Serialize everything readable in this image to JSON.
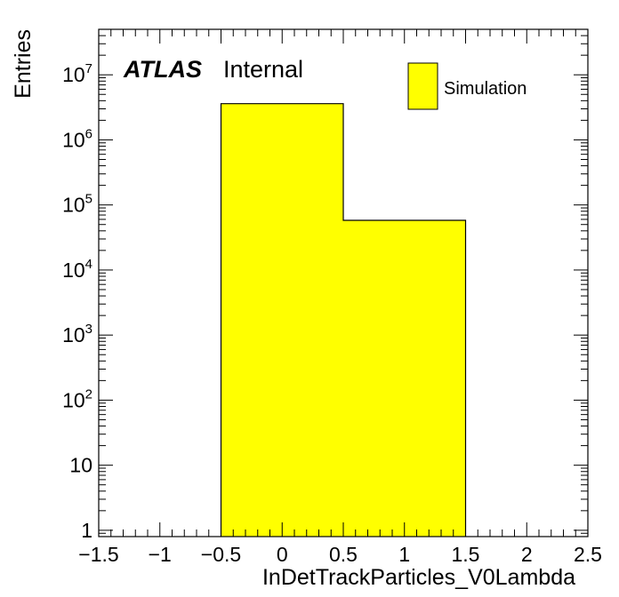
{
  "chart_data": {
    "type": "bar",
    "xlabel": "InDetTrackParticles_V0Lambda",
    "ylabel": "Entries",
    "xlim": [
      -1.5,
      2.5
    ],
    "ylim": [
      0.8,
      50000000
    ],
    "yscale": "log",
    "grid": false,
    "legend_position": "top-right",
    "fill_color": "#ffff00",
    "bins": [
      {
        "low": -0.5,
        "high": 0.5,
        "value": 3600000
      },
      {
        "low": 0.5,
        "high": 1.5,
        "value": 58000
      }
    ],
    "x_tick_labels": [
      {
        "value": -1.5,
        "text": "−1.5"
      },
      {
        "value": -1,
        "text": "−1"
      },
      {
        "value": -0.5,
        "text": "−0.5"
      },
      {
        "value": 0,
        "text": "0"
      },
      {
        "value": 0.5,
        "text": "0.5"
      },
      {
        "value": 1,
        "text": "1"
      },
      {
        "value": 1.5,
        "text": "1.5"
      },
      {
        "value": 2,
        "text": "2"
      },
      {
        "value": 2.5,
        "text": "2.5"
      }
    ],
    "y_tick_labels": [
      {
        "value": 1,
        "base": "1",
        "exp": ""
      },
      {
        "value": 10,
        "base": "10",
        "exp": ""
      },
      {
        "value": 100,
        "base": "10",
        "exp": "2"
      },
      {
        "value": 1000,
        "base": "10",
        "exp": "3"
      },
      {
        "value": 10000,
        "base": "10",
        "exp": "4"
      },
      {
        "value": 100000,
        "base": "10",
        "exp": "5"
      },
      {
        "value": 1000000,
        "base": "10",
        "exp": "6"
      },
      {
        "value": 10000000,
        "base": "10",
        "exp": "7"
      }
    ],
    "annotation": {
      "bold": "ATLAS",
      "normal": "Internal"
    },
    "legend": [
      {
        "label": "Simulation",
        "color": "#ffff00"
      }
    ]
  }
}
